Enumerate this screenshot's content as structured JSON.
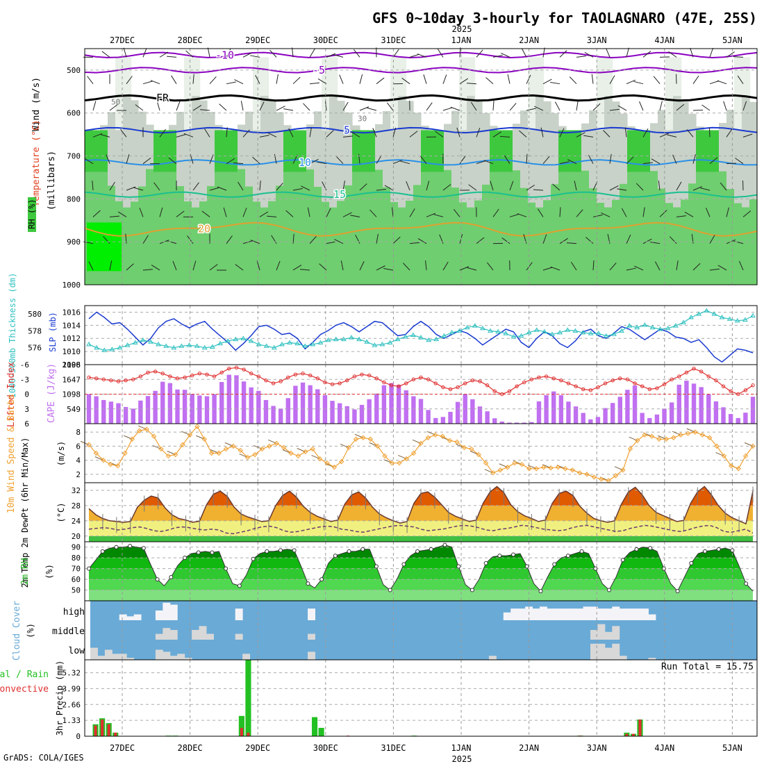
{
  "title": "GFS 0~10day 3-hourly for TAOLAGNARO (47E, 25S)",
  "year_label": "2025",
  "credit": "GrADS: COLA/IGES",
  "dates": [
    "27DEC",
    "28DEC",
    "29DEC",
    "30DEC",
    "31DEC",
    "1JAN",
    "2JAN",
    "3JAN",
    "4JAN",
    "5JAN"
  ],
  "colors": {
    "rh": "#3ec83e",
    "temp": "#e06000",
    "dew": "#6a3a70",
    "slp": "#1a3ad0",
    "thick": "#30c0c0",
    "li": "#e03030",
    "cape": "#c070f0",
    "wind": "#f0a030",
    "cloud": "#6aaad6",
    "rain": "#22c022",
    "conv": "#e03030"
  },
  "chart_data": [
    {
      "type": "heatmap",
      "name": "upper-air cross section",
      "ylabels": [
        "Wind (m/s)",
        "Temperature (°C)",
        "(millibars)"
      ],
      "rh_label": "RH (%)",
      "ylim": [
        1000,
        450
      ],
      "y_ticks": [
        500,
        600,
        700,
        800,
        900,
        1000
      ],
      "isotherm_labels": [
        "-10",
        "-5",
        "FR",
        "5",
        "10",
        "15",
        "20"
      ],
      "rh_labels": [
        "50",
        "30"
      ]
    },
    {
      "type": "line",
      "name": "thickness and sea level pressure",
      "ylabel_left": "1000-500mb Thickness (dm)",
      "ylabel_right": "SLP (mb)",
      "left_ticks": [
        "576",
        "578",
        "580"
      ],
      "right_ticks": [
        "1010",
        "1012",
        "1014",
        "1016"
      ],
      "right_extra_tick": "1008",
      "left_extra_tick": "574",
      "slp": [
        1015.0,
        1016.0,
        1015.2,
        1014.2,
        1014.4,
        1013.4,
        1012.2,
        1011.0,
        1012.0,
        1013.6,
        1014.6,
        1015.0,
        1014.2,
        1013.6,
        1014.2,
        1014.6,
        1013.4,
        1012.4,
        1011.4,
        1010.2,
        1011.2,
        1012.4,
        1013.8,
        1014.0,
        1013.4,
        1012.6,
        1012.8,
        1012.0,
        1010.4,
        1011.4,
        1012.6,
        1013.2,
        1014.0,
        1014.4,
        1013.8,
        1013.0,
        1013.8,
        1014.6,
        1014.4,
        1013.4,
        1012.4,
        1012.6,
        1013.8,
        1014.6,
        1013.8,
        1012.6,
        1012.0,
        1012.6,
        1013.2,
        1012.8,
        1012.0,
        1011.0,
        1011.8,
        1012.6,
        1013.4,
        1013.0,
        1011.4,
        1010.6,
        1012.0,
        1013.0,
        1012.4,
        1011.2,
        1010.6,
        1011.6,
        1013.0,
        1013.4,
        1012.4,
        1012.0,
        1012.8,
        1013.8,
        1013.4,
        1012.6,
        1011.8,
        1012.6,
        1013.4,
        1013.0,
        1012.2,
        1012.0,
        1011.4,
        1011.8,
        1010.6,
        1009.2,
        1008.4,
        1009.4,
        1010.4,
        1010.2,
        1009.8
      ],
      "thickness": [
        576.4,
        576.0,
        575.7,
        575.8,
        576.0,
        576.3,
        576.6,
        576.9,
        576.7,
        576.4,
        576.2,
        576.0,
        576.2,
        576.3,
        576.2,
        576.0,
        576.1,
        576.5,
        576.8,
        577.0,
        577.1,
        576.8,
        576.4,
        576.2,
        576.0,
        576.4,
        576.6,
        576.5,
        576.2,
        576.4,
        576.6,
        576.9,
        577.0,
        577.0,
        577.2,
        577.0,
        576.7,
        576.3,
        576.4,
        576.6,
        577.0,
        577.3,
        577.5,
        577.2,
        576.9,
        577.0,
        577.4,
        577.8,
        578.0,
        578.4,
        578.6,
        578.3,
        578.0,
        577.9,
        577.7,
        577.3,
        577.4,
        577.8,
        578.1,
        577.9,
        577.6,
        577.8,
        578.1,
        578.0,
        577.8,
        577.7,
        577.7,
        577.4,
        577.6,
        578.0,
        578.6,
        578.4,
        578.7,
        578.4,
        578.2,
        578.3,
        578.6,
        579.0,
        579.6,
        580.0,
        580.4,
        580.0,
        579.6,
        579.4,
        579.2,
        579.3,
        579.8
      ]
    },
    {
      "type": "bar",
      "name": "lifted index and CAPE",
      "ylabel_left": "Lifted Index",
      "ylabel_right": "CAPE (J/kg)",
      "left_ticks": [
        "-6",
        "-3",
        "0",
        "3",
        "6"
      ],
      "right_ticks": [
        "549",
        "1098",
        "1647",
        "2196"
      ],
      "right_extra_tick": "0",
      "cape": [
        1100,
        1020,
        880,
        820,
        760,
        620,
        560,
        860,
        1030,
        1220,
        1560,
        1510,
        1270,
        1260,
        1110,
        1050,
        1020,
        1090,
        1550,
        1820,
        1800,
        1570,
        1350,
        1220,
        880,
        660,
        560,
        950,
        1410,
        1530,
        1430,
        1280,
        1060,
        850,
        760,
        650,
        530,
        700,
        910,
        1120,
        1430,
        1510,
        1440,
        1240,
        1020,
        920,
        510,
        210,
        250,
        440,
        810,
        1100,
        910,
        640,
        460,
        200,
        80,
        40,
        40,
        40,
        60,
        830,
        1060,
        1200,
        1060,
        820,
        640,
        400,
        160,
        250,
        580,
        770,
        1000,
        1260,
        1420,
        400,
        210,
        340,
        560,
        790,
        1450,
        1600,
        1490,
        1360,
        1100,
        830,
        610,
        360,
        210,
        410,
        1000
      ],
      "li": [
        -3.4,
        -3.2,
        -3.0,
        -2.8,
        -2.6,
        -2.8,
        -3.0,
        -3.6,
        -4.4,
        -4.6,
        -4.2,
        -3.6,
        -3.2,
        -3.4,
        -3.8,
        -4.2,
        -4.0,
        -3.6,
        -4.4,
        -5.2,
        -5.4,
        -5.0,
        -4.2,
        -3.6,
        -2.8,
        -2.2,
        -2.6,
        -3.4,
        -4.0,
        -4.2,
        -3.8,
        -3.2,
        -2.4,
        -2.0,
        -2.2,
        -2.8,
        -3.6,
        -4.0,
        -3.8,
        -3.2,
        -2.4,
        -1.8,
        -1.6,
        -2.2,
        -3.0,
        -3.4,
        -3.0,
        -2.2,
        -1.4,
        -1.0,
        -1.4,
        -2.2,
        -2.8,
        -2.6,
        -1.8,
        -0.6,
        0.0,
        -0.6,
        -1.6,
        -2.4,
        -3.0,
        -3.4,
        -3.6,
        -3.2,
        -2.8,
        -2.2,
        -1.6,
        -1.0,
        -0.8,
        -1.4,
        -2.2,
        -2.8,
        -3.2,
        -3.0,
        -2.2,
        -1.6,
        -1.0,
        -1.2,
        -2.0,
        -3.0,
        -3.6,
        -4.4,
        -5.2,
        -4.6,
        -3.6,
        -2.8,
        -1.6,
        -0.6,
        0.0,
        -0.8,
        -1.8
      ]
    },
    {
      "type": "line",
      "name": "10m wind",
      "ylabel_left": "10m Wind Speed & Barbs",
      "ylabel_right": "(m/s)",
      "y_ticks": [
        "2",
        "4",
        "6",
        "8"
      ],
      "ylim": [
        0.8,
        9.2
      ],
      "speed": [
        6.2,
        5.0,
        4.0,
        3.4,
        3.2,
        5.0,
        7.0,
        8.2,
        8.4,
        7.4,
        5.6,
        4.6,
        4.8,
        6.2,
        7.6,
        8.8,
        7.0,
        5.0,
        5.0,
        5.6,
        6.0,
        5.4,
        4.4,
        4.8,
        5.6,
        6.0,
        6.4,
        5.8,
        5.0,
        4.6,
        5.2,
        5.6,
        4.2,
        3.6,
        3.0,
        3.8,
        5.8,
        7.0,
        7.2,
        7.0,
        6.0,
        4.6,
        3.6,
        3.6,
        4.2,
        5.0,
        6.4,
        7.2,
        7.6,
        7.4,
        6.8,
        6.6,
        5.8,
        5.6,
        4.8,
        3.6,
        2.2,
        2.6,
        3.0,
        3.6,
        3.4,
        2.8,
        2.8,
        3.0,
        2.9,
        3.0,
        2.8,
        2.6,
        2.2,
        2.0,
        1.6,
        1.3,
        1.1,
        1.8,
        2.6,
        5.6,
        6.8,
        7.6,
        7.4,
        7.0,
        7.0,
        7.2,
        7.6,
        7.8,
        8.0,
        7.6,
        7.2,
        6.0,
        4.6,
        3.2,
        2.8,
        4.6,
        6.0
      ]
    },
    {
      "type": "area",
      "name": "2m temperature and dew point",
      "ylabel_left": "2m Temp 2m DewPt (6hr Min/Max)",
      "ylabel_right": "(°C)",
      "y_ticks": [
        "20",
        "24",
        "28",
        "32"
      ],
      "ylim": [
        18.5,
        34
      ],
      "temp": [
        27.2,
        25.6,
        24.6,
        24.0,
        23.8,
        23.6,
        23.8,
        27.5,
        29.4,
        30.5,
        30.0,
        27.4,
        25.6,
        24.6,
        24.2,
        23.6,
        23.9,
        28.2,
        31.0,
        31.8,
        30.4,
        27.6,
        25.8,
        25.0,
        24.4,
        23.8,
        24.0,
        28.0,
        30.6,
        31.8,
        30.2,
        27.8,
        26.2,
        25.2,
        24.5,
        23.8,
        24.2,
        28.4,
        30.8,
        31.6,
        30.0,
        27.6,
        25.8,
        24.8,
        24.0,
        23.4,
        23.8,
        28.6,
        31.2,
        31.6,
        30.2,
        28.2,
        26.2,
        25.2,
        24.5,
        23.8,
        24.2,
        28.6,
        31.6,
        33.0,
        31.4,
        28.2,
        26.4,
        25.3,
        24.6,
        23.8,
        24.2,
        28.6,
        31.2,
        31.8,
        30.6,
        27.8,
        26.0,
        24.6,
        24.0,
        23.6,
        24.0,
        28.4,
        31.6,
        32.8,
        30.8,
        28.0,
        26.2,
        25.4,
        24.6,
        23.8,
        24.1,
        28.6,
        31.6,
        33.0,
        30.8,
        28.0,
        26.0,
        24.8,
        24.0,
        23.2,
        31.8
      ],
      "dewpt": [
        21.8,
        22.0,
        22.2,
        22.0,
        21.6,
        21.8,
        22.2,
        22.4,
        22.0,
        21.4,
        21.2,
        21.6,
        22.2,
        22.4,
        22.2,
        21.8,
        21.6,
        21.8,
        21.6,
        20.8,
        20.6,
        21.0,
        21.4,
        22.0,
        22.4,
        22.6,
        22.2,
        21.4,
        21.0,
        21.2,
        21.6,
        22.0,
        22.4,
        22.6,
        22.4,
        21.8,
        21.6,
        21.2,
        21.0,
        21.4,
        21.8,
        22.2,
        22.6,
        22.8,
        22.6,
        22.4,
        21.8,
        21.4,
        21.6,
        21.8,
        22.2,
        22.6,
        22.8,
        22.6,
        22.2,
        21.6,
        21.4,
        21.8,
        22.0,
        22.4,
        22.8,
        22.6,
        22.2,
        21.8,
        21.6,
        21.4,
        21.6,
        22.2,
        22.6,
        22.8,
        22.4,
        22.0,
        21.6,
        21.2,
        21.4,
        22.0,
        22.4,
        22.8,
        22.6,
        22.2,
        21.8,
        21.4,
        21.2,
        21.6,
        22.2,
        22.6,
        22.8,
        22.2,
        21.2,
        21.0,
        21.4,
        21.8,
        20.8
      ]
    },
    {
      "type": "area",
      "name": "2m relative humidity",
      "ylabel_left": "2m RH",
      "ylabel_right": "(%)",
      "y_ticks": [
        "50",
        "60",
        "70",
        "80",
        "90"
      ],
      "ylim": [
        40,
        95
      ],
      "rh": [
        70,
        78,
        86,
        89,
        90,
        90,
        91,
        90,
        89,
        74,
        60,
        54,
        62,
        73,
        80,
        84,
        85,
        86,
        85,
        86,
        70,
        56,
        54,
        64,
        79,
        84,
        86,
        86,
        87,
        88,
        87,
        72,
        56,
        52,
        60,
        75,
        82,
        84,
        86,
        86,
        88,
        88,
        72,
        55,
        50,
        60,
        74,
        82,
        86,
        87,
        88,
        90,
        92,
        90,
        72,
        55,
        50,
        60,
        75,
        81,
        82,
        82,
        83,
        84,
        72,
        56,
        49,
        62,
        74,
        80,
        82,
        84,
        86,
        84,
        70,
        56,
        50,
        62,
        78,
        85,
        88,
        90,
        89,
        86,
        70,
        56,
        49,
        62,
        75,
        84,
        86,
        87,
        88,
        89,
        87,
        72,
        56,
        49
      ]
    },
    {
      "type": "heatmap",
      "name": "cloud cover",
      "ylabel_left": "Cloud Cover",
      "ylabel_right": "(%)",
      "levels": [
        "high",
        "middle",
        "low"
      ],
      "high": [
        0,
        0,
        0,
        0,
        0.3,
        0.2,
        0.3,
        0,
        0,
        0.5,
        0.9,
        0.8,
        0,
        0,
        0,
        0,
        0,
        0,
        0,
        0,
        0.6,
        0,
        0,
        0,
        0,
        0,
        0,
        0,
        0,
        0,
        0.6,
        0,
        0,
        0,
        0,
        0,
        0,
        0,
        0,
        0,
        0,
        0,
        0,
        0,
        0,
        0,
        0,
        0,
        0,
        0,
        0,
        0,
        0,
        0,
        0,
        0,
        0,
        0.4,
        0.6,
        0.6,
        0.7,
        0.6,
        0.7,
        0.6,
        0.6,
        0.6,
        0.6,
        0.6,
        0.7,
        0.7,
        0.6,
        0.6,
        0.7,
        0.6,
        0.6,
        0.6,
        0.6,
        0.3,
        0,
        0,
        0,
        0,
        0,
        0,
        0,
        0,
        0,
        0,
        0,
        0,
        0,
        0
      ],
      "middle": [
        0,
        0,
        0,
        0,
        0,
        0,
        0,
        0,
        0,
        0.3,
        0.6,
        0.5,
        0,
        0,
        0.5,
        0.7,
        0.3,
        0,
        0,
        0,
        0.3,
        0,
        0,
        0,
        0,
        0,
        0,
        0,
        0,
        0,
        0.3,
        0,
        0,
        0,
        0,
        0,
        0,
        0,
        0,
        0,
        0,
        0,
        0,
        0,
        0,
        0,
        0,
        0,
        0,
        0,
        0,
        0,
        0,
        0,
        0,
        0,
        0,
        0,
        0,
        0,
        0,
        0,
        0,
        0,
        0,
        0,
        0,
        0,
        0,
        0.5,
        0.8,
        0.4,
        0.7,
        0,
        0,
        0,
        0,
        0,
        0,
        0,
        0,
        0,
        0,
        0,
        0,
        0,
        0,
        0,
        0,
        0,
        0,
        0
      ],
      "low": [
        0.6,
        0.2,
        0.5,
        0.3,
        0.3,
        0.1,
        0,
        0,
        0,
        0.5,
        0.4,
        0.2,
        0.3,
        0.1,
        0,
        0,
        0,
        0,
        0,
        0,
        0,
        0.3,
        0,
        0,
        0,
        0,
        0,
        0,
        0,
        0,
        0.4,
        0,
        0,
        0,
        0,
        0,
        0,
        0,
        0,
        0,
        0,
        0,
        0,
        0,
        0,
        0,
        0,
        0,
        0,
        0,
        0,
        0,
        0,
        0,
        0,
        0.2,
        0,
        0,
        0,
        0,
        0,
        0,
        0,
        0,
        0,
        0,
        0,
        0,
        0,
        0.8,
        0.8,
        0.6,
        0.8,
        0.2,
        0,
        0,
        0,
        0.1,
        0,
        0,
        0,
        0,
        0,
        0,
        0,
        0,
        0,
        0,
        0,
        0
      ]
    },
    {
      "type": "bar",
      "name": "3hr precipitation",
      "ylabel_left": "Total / Rain Convective",
      "ylabel_right": "3hr Precip (mm)",
      "y_ticks": [
        "0",
        "1.33",
        "2.66",
        "3.99",
        "5.32"
      ],
      "ylim": [
        0,
        6.4
      ],
      "annotation": "Run Total = 15.75",
      "total": [
        0,
        1.0,
        1.5,
        1.1,
        0.3,
        0,
        0,
        0,
        0,
        0,
        0,
        0,
        0.05,
        0.05,
        0,
        0,
        0,
        0,
        0,
        0,
        0,
        0,
        0,
        1.7,
        6.4,
        0,
        0,
        0,
        0,
        0,
        0,
        0,
        0,
        0,
        1.6,
        0.7,
        0,
        0,
        0,
        0,
        0,
        0,
        0,
        0,
        0,
        0,
        0,
        0,
        0,
        0.05,
        0,
        0,
        0,
        0,
        0,
        0,
        0,
        0,
        0,
        0,
        0,
        0,
        0,
        0,
        0,
        0,
        0,
        0,
        0,
        0,
        0,
        0,
        0,
        0,
        0.05,
        0,
        0,
        0,
        0,
        0,
        0,
        0.3,
        0.2,
        1.4,
        0,
        0,
        0,
        0,
        0,
        0,
        0,
        0,
        0,
        0,
        0,
        0,
        0,
        0,
        0,
        0,
        0
      ],
      "convective": [
        0,
        0.9,
        1.4,
        1.0,
        0.3,
        0,
        0,
        0,
        0,
        0,
        0,
        0,
        0,
        0,
        0,
        0,
        0,
        0,
        0,
        0,
        0,
        0,
        0,
        0.7,
        0.3,
        0,
        0,
        0,
        0,
        0,
        0,
        0,
        0,
        0,
        0,
        0,
        0,
        0,
        0,
        0.05,
        0,
        0,
        0,
        0,
        0,
        0,
        0,
        0,
        0,
        0,
        0,
        0,
        0,
        0,
        0,
        0,
        0,
        0,
        0,
        0,
        0,
        0,
        0,
        0,
        0,
        0,
        0,
        0,
        0,
        0,
        0,
        0,
        0,
        0,
        0.05,
        0,
        0,
        0,
        0,
        0,
        0,
        0.2,
        0.2,
        1.4,
        0,
        0,
        0,
        0,
        0,
        0,
        0,
        0,
        0,
        0,
        0,
        0,
        0,
        0,
        0,
        0,
        0
      ]
    }
  ]
}
